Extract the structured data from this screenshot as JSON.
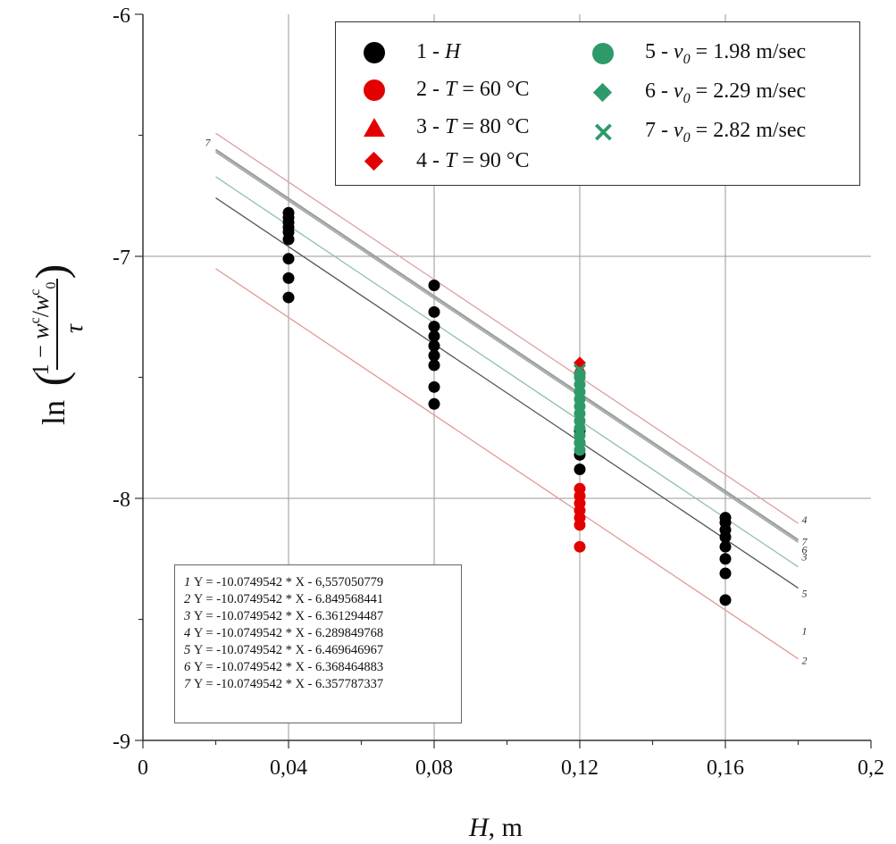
{
  "chart_data": {
    "type": "scatter",
    "xlabel_symbol": "H",
    "xlabel_unit": ", m",
    "ylabel": "ln((1 − w^c/w^c_0)/τ)",
    "xlim": [
      0,
      0.2
    ],
    "ylim": [
      -9,
      -6
    ],
    "x_ticks": [
      "0",
      "0,04",
      "0,08",
      "0,12",
      "0,16",
      "0,2"
    ],
    "y_ticks": [
      "-9",
      "-8",
      "-7",
      "-6"
    ],
    "x_tick_values": [
      0,
      0.04,
      0.08,
      0.12,
      0.16,
      0.2
    ],
    "y_tick_values": [
      -9,
      -8,
      -7,
      -6
    ],
    "grid": true,
    "legend_position": "top-right",
    "series": [
      {
        "id": "1",
        "label": "1 - H",
        "color": "#000000",
        "marker": "circle",
        "points": [
          [
            0.04,
            -6.82
          ],
          [
            0.04,
            -6.84
          ],
          [
            0.04,
            -6.86
          ],
          [
            0.04,
            -6.88
          ],
          [
            0.04,
            -6.9
          ],
          [
            0.04,
            -6.93
          ],
          [
            0.04,
            -7.01
          ],
          [
            0.04,
            -7.09
          ],
          [
            0.04,
            -7.17
          ],
          [
            0.08,
            -7.12
          ],
          [
            0.08,
            -7.23
          ],
          [
            0.08,
            -7.29
          ],
          [
            0.08,
            -7.33
          ],
          [
            0.08,
            -7.37
          ],
          [
            0.08,
            -7.41
          ],
          [
            0.08,
            -7.45
          ],
          [
            0.08,
            -7.54
          ],
          [
            0.08,
            -7.61
          ],
          [
            0.12,
            -7.72
          ],
          [
            0.12,
            -7.77
          ],
          [
            0.12,
            -7.82
          ],
          [
            0.12,
            -7.88
          ],
          [
            0.16,
            -8.08
          ],
          [
            0.16,
            -8.1
          ],
          [
            0.16,
            -8.13
          ],
          [
            0.16,
            -8.16
          ],
          [
            0.16,
            -8.2
          ],
          [
            0.16,
            -8.25
          ],
          [
            0.16,
            -8.31
          ],
          [
            0.16,
            -8.42
          ]
        ]
      },
      {
        "id": "2",
        "label": "2 - T = 60 °C",
        "color": "#e30000",
        "marker": "circle",
        "points": [
          [
            0.12,
            -7.96
          ],
          [
            0.12,
            -7.99
          ],
          [
            0.12,
            -8.02
          ],
          [
            0.12,
            -8.05
          ],
          [
            0.12,
            -8.08
          ],
          [
            0.12,
            -8.11
          ],
          [
            0.12,
            -8.2
          ]
        ]
      },
      {
        "id": "3",
        "label": "3 - T = 80 °C",
        "color": "#e30000",
        "marker": "triangle",
        "points": [
          [
            0.12,
            -7.46
          ]
        ]
      },
      {
        "id": "4",
        "label": "4 - T = 90 °C",
        "color": "#e30000",
        "marker": "diamond",
        "points": [
          [
            0.12,
            -7.44
          ]
        ]
      },
      {
        "id": "5",
        "label": "5 - v0 = 1.98 m/sec",
        "color": "#2e9a6a",
        "marker": "circle",
        "points": [
          [
            0.12,
            -7.5
          ],
          [
            0.12,
            -7.53
          ],
          [
            0.12,
            -7.56
          ],
          [
            0.12,
            -7.59
          ],
          [
            0.12,
            -7.62
          ],
          [
            0.12,
            -7.65
          ],
          [
            0.12,
            -7.68
          ],
          [
            0.12,
            -7.71
          ],
          [
            0.12,
            -7.74
          ],
          [
            0.12,
            -7.77
          ],
          [
            0.12,
            -7.8
          ]
        ]
      },
      {
        "id": "6",
        "label": "6 - v0 = 2.29 m/sec",
        "color": "#2e9a6a",
        "marker": "diamond",
        "points": [
          [
            0.12,
            -7.48
          ]
        ]
      },
      {
        "id": "7",
        "label": "7 - v0 = 2.82 m/sec",
        "color": "#2e9a6a",
        "marker": "x",
        "points": [
          [
            0.12,
            -7.47
          ]
        ]
      }
    ],
    "fit_lines": [
      {
        "id": "1",
        "slope": -10.0749542,
        "intercept": -6.557050779,
        "color": "#555555",
        "label": "1"
      },
      {
        "id": "2",
        "slope": -10.0749542,
        "intercept": -6.849568441,
        "color": "#e29a9a",
        "label": "2"
      },
      {
        "id": "3",
        "slope": -10.0749542,
        "intercept": -6.361294487,
        "color": "#8aa08a",
        "label": "3"
      },
      {
        "id": "4",
        "slope": -10.0749542,
        "intercept": -6.289849768,
        "color": "#e0a0a0",
        "label": "4"
      },
      {
        "id": "5",
        "slope": -10.0749542,
        "intercept": -6.469646967,
        "color": "#8ec0aa",
        "label": "5"
      },
      {
        "id": "6",
        "slope": -10.0749542,
        "intercept": -6.368464883,
        "color": "#9aa89a",
        "label": "6"
      },
      {
        "id": "7",
        "slope": -10.0749542,
        "intercept": -6.357787337,
        "color": "#a0a0a0",
        "label": "7"
      }
    ],
    "fit_x_range": [
      0.02,
      0.18
    ],
    "equations": [
      {
        "num": "1",
        "text": "Y = -10.0749542 * X - 6,557050779"
      },
      {
        "num": "2",
        "text": "Y =  -10.0749542 * X - 6.849568441"
      },
      {
        "num": "3",
        "text": "Y =  -10.0749542 * X - 6.361294487"
      },
      {
        "num": "4",
        "text": "Y =  -10.0749542 * X - 6.289849768"
      },
      {
        "num": "5",
        "text": "Y =  -10.0749542 * X - 6.469646967"
      },
      {
        "num": "6",
        "text": "Y =  -10.0749542 * X - 6.368464883"
      },
      {
        "num": "7",
        "text": "Y =  -10.0749542 * X - 6.357787337"
      }
    ]
  },
  "legend": {
    "items": [
      {
        "num": "1 - ",
        "var": "H",
        "rest": "",
        "marker": "circle",
        "color": "#000000"
      },
      {
        "num": "2 - ",
        "var": "T",
        "rest": " = 60 °C",
        "marker": "circle",
        "color": "#e30000"
      },
      {
        "num": "3 - ",
        "var": "T",
        "rest": " = 80 °C",
        "marker": "triangle",
        "color": "#e30000"
      },
      {
        "num": "4 - ",
        "var": "T",
        "rest": " = 90 °C",
        "marker": "diamond",
        "color": "#e30000"
      },
      {
        "num": "5 - ",
        "var": "v",
        "sub": "0",
        "rest": " = 1.98 m/sec",
        "marker": "circle",
        "color": "#2e9a6a"
      },
      {
        "num": "6 - ",
        "var": "v",
        "sub": "0",
        "rest": " = 2.29 m/sec",
        "marker": "diamond",
        "color": "#2e9a6a"
      },
      {
        "num": "7 - ",
        "var": "v",
        "sub": "0",
        "rest": " = 2.82 m/sec",
        "marker": "x",
        "color": "#2e9a6a"
      }
    ]
  }
}
